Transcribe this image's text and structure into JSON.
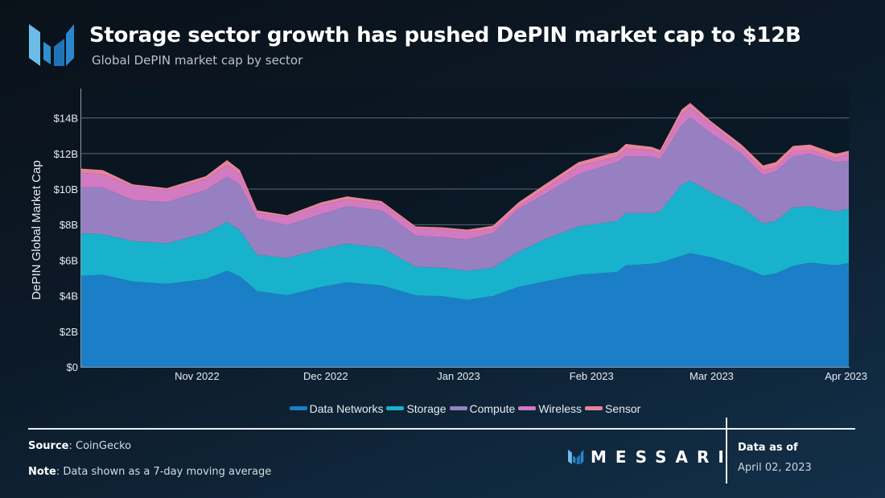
{
  "header": {
    "title": "Storage sector growth has pushed DePIN market cap to $12B",
    "subtitle": "Global DePIN market cap by sector"
  },
  "chart_data": {
    "type": "area",
    "stacked": true,
    "ylabel": "DePIN Global Market Cap",
    "ylim": [
      0,
      15.75
    ],
    "y_unit": "USD billions",
    "y_ticks": [
      {
        "value": 0,
        "label": "$0"
      },
      {
        "value": 2,
        "label": "$2B"
      },
      {
        "value": 4,
        "label": "$4B"
      },
      {
        "value": 6,
        "label": "$6B"
      },
      {
        "value": 8,
        "label": "$8B"
      },
      {
        "value": 10,
        "label": "$10B"
      },
      {
        "value": 12,
        "label": "$12B"
      },
      {
        "value": 14,
        "label": "$14B"
      }
    ],
    "xlim": [
      "2022-10-05",
      "2023-04-02"
    ],
    "x_ticks": [
      {
        "date": "2022-11-01",
        "label": "Nov 2022"
      },
      {
        "date": "2022-12-01",
        "label": "Dec 2022"
      },
      {
        "date": "2023-01-01",
        "label": "Jan 2023"
      },
      {
        "date": "2023-02-01",
        "label": "Feb 2023"
      },
      {
        "date": "2023-03-01",
        "label": "Mar 2023"
      },
      {
        "date": "2023-04-01",
        "label": "Apr 2023"
      }
    ],
    "grid": true,
    "legend_position": "bottom",
    "x": [
      "2022-10-05",
      "2022-10-10",
      "2022-10-17",
      "2022-10-25",
      "2022-11-03",
      "2022-11-08",
      "2022-11-11",
      "2022-11-15",
      "2022-11-22",
      "2022-11-30",
      "2022-12-06",
      "2022-12-14",
      "2022-12-22",
      "2022-12-28",
      "2023-01-03",
      "2023-01-09",
      "2023-01-15",
      "2023-01-21",
      "2023-01-29",
      "2023-02-07",
      "2023-02-09",
      "2023-02-15",
      "2023-02-17",
      "2023-02-22",
      "2023-02-24",
      "2023-03-01",
      "2023-03-08",
      "2023-03-13",
      "2023-03-16",
      "2023-03-20",
      "2023-03-24",
      "2023-03-30",
      "2023-04-02"
    ],
    "series": [
      {
        "name": "Data Networks",
        "color": "#1a7fc6",
        "values": [
          5.12,
          5.18,
          4.8,
          4.67,
          4.94,
          5.4,
          5.1,
          4.26,
          4.03,
          4.5,
          4.76,
          4.58,
          4.03,
          3.98,
          3.76,
          3.99,
          4.5,
          4.8,
          5.18,
          5.34,
          5.71,
          5.8,
          5.86,
          6.25,
          6.39,
          6.16,
          5.63,
          5.13,
          5.26,
          5.68,
          5.86,
          5.71,
          5.84
        ]
      },
      {
        "name": "Storage",
        "color": "#19b2cc",
        "values": [
          2.4,
          2.27,
          2.27,
          2.28,
          2.58,
          2.76,
          2.57,
          2.05,
          2.09,
          2.12,
          2.17,
          2.12,
          1.6,
          1.59,
          1.64,
          1.58,
          1.97,
          2.36,
          2.72,
          2.86,
          2.94,
          2.85,
          2.88,
          3.99,
          4.08,
          3.63,
          3.34,
          2.93,
          2.94,
          3.29,
          3.17,
          3.03,
          3.04
        ]
      },
      {
        "name": "Compute",
        "color": "#9680c2",
        "values": [
          2.58,
          2.65,
          2.31,
          2.31,
          2.42,
          2.54,
          2.57,
          2.04,
          1.85,
          1.96,
          2.1,
          2.1,
          1.75,
          1.73,
          1.76,
          1.95,
          2.41,
          2.55,
          2.94,
          3.32,
          3.18,
          3.18,
          2.93,
          3.32,
          3.55,
          3.32,
          3.01,
          2.71,
          2.8,
          2.86,
          2.95,
          2.78,
          2.72
        ]
      },
      {
        "name": "Wireless",
        "color": "#d27ac2",
        "values": [
          0.82,
          0.74,
          0.78,
          0.68,
          0.61,
          0.67,
          0.6,
          0.3,
          0.46,
          0.52,
          0.39,
          0.4,
          0.41,
          0.45,
          0.44,
          0.23,
          0.15,
          0.3,
          0.46,
          0.31,
          0.45,
          0.37,
          0.31,
          0.61,
          0.6,
          0.53,
          0.3,
          0.3,
          0.22,
          0.37,
          0.22,
          0.23,
          0.38
        ]
      },
      {
        "name": "Sensor",
        "color": "#e8849a",
        "values": [
          0.23,
          0.23,
          0.11,
          0.12,
          0.17,
          0.26,
          0.23,
          0.15,
          0.1,
          0.16,
          0.17,
          0.13,
          0.11,
          0.1,
          0.12,
          0.19,
          0.23,
          0.23,
          0.22,
          0.27,
          0.26,
          0.18,
          0.22,
          0.3,
          0.23,
          0.15,
          0.22,
          0.26,
          0.3,
          0.23,
          0.3,
          0.23,
          0.18
        ]
      }
    ]
  },
  "footer": {
    "source_label": "Source",
    "source_value": ": CoinGecko",
    "note_label": "Note",
    "note_value": ": Data shown as a 7-day moving average",
    "brand": "MESSARI",
    "data_as_of_label": "Data as of",
    "data_as_of_date": "April 02, 2023"
  }
}
